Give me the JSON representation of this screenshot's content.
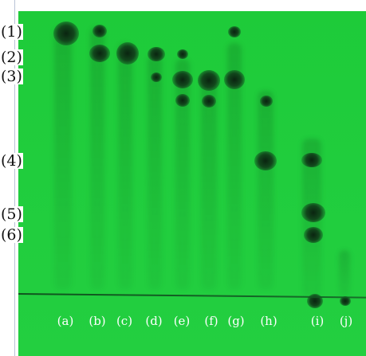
{
  "reference_labels": [
    "(1)",
    "(2)",
    "(3)",
    "(4)",
    "(5)",
    "(6)"
  ],
  "lane_labels": [
    "(a)",
    "(b)",
    "(c)",
    "(d)",
    "(e)",
    "(f)",
    "(g)",
    "(h)",
    "(i)",
    "(j)"
  ],
  "colors": {
    "plate": "#20cd3d",
    "spot": "#0f3a18",
    "label_text": "#ffffff"
  }
}
